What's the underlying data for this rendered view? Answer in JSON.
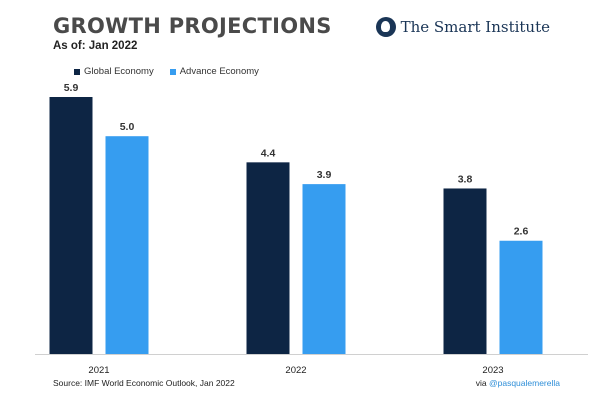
{
  "header": {
    "title": "GROWTH PROJECTIONS",
    "subtitle": "As of: Jan 2022",
    "brand": "The Smart Institute"
  },
  "footer": {
    "source": "Source: IMF World Economic Outlook, Jan 2022",
    "via": "via",
    "handle": "@pasqualemerella"
  },
  "colors": {
    "global": "#0d2544",
    "advance": "#369df0",
    "text": "#333333"
  },
  "chart_data": {
    "type": "bar",
    "title": "GROWTH PROJECTIONS",
    "subtitle": "As of: Jan 2022",
    "categories": [
      "2021",
      "2022",
      "2023"
    ],
    "series": [
      {
        "name": "Global Economy",
        "values": [
          5.9,
          4.4,
          3.8
        ]
      },
      {
        "name": "Advance Economy",
        "values": [
          5.0,
          3.9,
          2.6
        ]
      }
    ],
    "value_labels": {
      "global": [
        "5.9",
        "4.4",
        "3.8"
      ],
      "advance": [
        "5.0",
        "3.9",
        "2.6"
      ]
    },
    "ylim": [
      0,
      5.9
    ],
    "grid": false,
    "legend": "top-left"
  }
}
